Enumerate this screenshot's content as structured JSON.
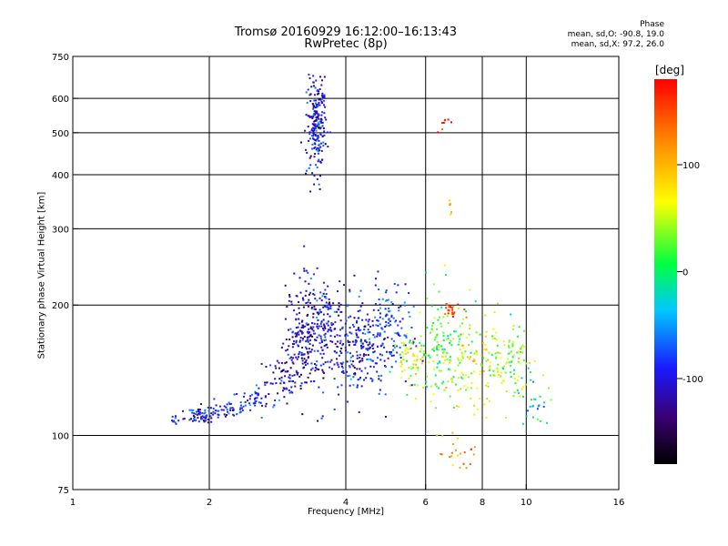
{
  "chart_data": {
    "type": "scatter",
    "title": "Tromsø 20160929 16:12:00–16:13:43",
    "subtitle": "RwPretec (8p)",
    "xlabel": "Frequency [MHz]",
    "ylabel": "Stationary phase Virtual Height [km]",
    "x_scale": "log",
    "y_scale": "log",
    "xlim": [
      1,
      16
    ],
    "ylim": [
      75,
      750
    ],
    "x_ticks": [
      "1",
      "2",
      "4",
      "6",
      "8",
      "10",
      "16"
    ],
    "y_ticks": [
      "75",
      "100",
      "200",
      "300",
      "400",
      "500",
      "600",
      "750"
    ],
    "grid": true,
    "phase_legend": {
      "title": "Phase",
      "line_o": "mean, sd,O: -90.8, 19.0",
      "line_x": "mean, sd,X:  97.2, 26.0"
    },
    "colorbar": {
      "unit": "[deg]",
      "ticks": [
        "100",
        "0",
        "-100"
      ],
      "range": [
        -180,
        180
      ]
    },
    "series": [
      {
        "clusters": [
          {
            "x": [
              1.65,
              1.7
            ],
            "y": [
              105,
              112
            ],
            "n": 8,
            "phase": -90
          },
          {
            "x": 1.9,
            "y": 111,
            "n": 60,
            "phase": -95,
            "sx": 0.04,
            "sy": 0.02
          },
          {
            "x": 2.2,
            "y": 115,
            "n": 50,
            "phase": -90,
            "sx": 0.06,
            "sy": 0.025
          },
          {
            "x": 2.55,
            "y": 122,
            "n": 45,
            "phase": -85,
            "sx": 0.05,
            "sy": 0.03
          },
          {
            "x": 2.9,
            "y": 135,
            "n": 40,
            "phase": -100,
            "sx": 0.04,
            "sy": 0.05
          },
          {
            "x": 3.2,
            "y": 165,
            "n": 180,
            "phase": -120,
            "sx": 0.045,
            "sy": 0.16
          },
          {
            "x": 3.6,
            "y": 170,
            "n": 200,
            "phase": -100,
            "sx": 0.06,
            "sy": 0.15
          },
          {
            "x": 3.45,
            "y": 520,
            "n": 220,
            "phase": -100,
            "sx": 0.025,
            "sy": 0.12
          },
          {
            "x": 4.3,
            "y": 160,
            "n": 200,
            "phase": -95,
            "sx": 0.07,
            "sy": 0.14
          },
          {
            "x": 5.0,
            "y": 170,
            "n": 120,
            "phase": -80,
            "sx": 0.06,
            "sy": 0.13
          },
          {
            "x": 5.6,
            "y": 150,
            "n": 60,
            "phase": 60,
            "sx": 0.05,
            "sy": 0.08
          },
          {
            "x": 6.5,
            "y": 160,
            "n": 120,
            "phase": 20,
            "sx": 0.07,
            "sy": 0.14
          },
          {
            "x": 7.6,
            "y": 150,
            "n": 120,
            "phase": 60,
            "sx": 0.07,
            "sy": 0.14
          },
          {
            "x": 9.2,
            "y": 145,
            "n": 90,
            "phase": 40,
            "sx": 0.06,
            "sy": 0.12
          },
          {
            "x": 6.8,
            "y": 195,
            "n": 20,
            "phase": 150,
            "sx": 0.02,
            "sy": 0.02
          },
          {
            "x": 6.6,
            "y": 520,
            "n": 8,
            "phase": 165,
            "sx": 0.02,
            "sy": 0.02
          },
          {
            "x": 6.8,
            "y": 330,
            "n": 6,
            "phase": 80,
            "sx": 0.01,
            "sy": 0.03
          },
          {
            "x": 7.2,
            "y": 90,
            "n": 20,
            "phase": 120,
            "sx": 0.06,
            "sy": 0.05
          },
          {
            "x": 10.3,
            "y": 120,
            "n": 25,
            "phase": -20,
            "sx": 0.04,
            "sy": 0.08
          }
        ]
      }
    ]
  }
}
